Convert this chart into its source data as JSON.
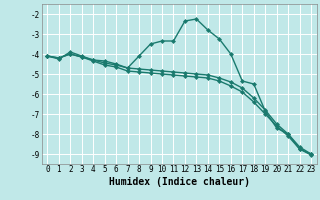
{
  "background_color": "#c0e8e8",
  "grid_color": "#ffffff",
  "line_color": "#1a7a6e",
  "marker": "D",
  "marker_size": 2,
  "line_width": 1.0,
  "xlabel": "Humidex (Indice chaleur)",
  "xlabel_fontsize": 7,
  "xlim": [
    -0.5,
    23.5
  ],
  "ylim": [
    -9.5,
    -1.5
  ],
  "yticks": [
    -9,
    -8,
    -7,
    -6,
    -5,
    -4,
    -3,
    -2
  ],
  "xticks": [
    0,
    1,
    2,
    3,
    4,
    5,
    6,
    7,
    8,
    9,
    10,
    11,
    12,
    13,
    14,
    15,
    16,
    17,
    18,
    19,
    20,
    21,
    22,
    23
  ],
  "tick_fontsize": 5.5,
  "series": [
    {
      "x": [
        0,
        1,
        2,
        3,
        4,
        5,
        6,
        7,
        8,
        9,
        10,
        11,
        12,
        13,
        14,
        15,
        16,
        17,
        18,
        19,
        20,
        21,
        22,
        23
      ],
      "y": [
        -4.1,
        -4.25,
        -3.9,
        -4.1,
        -4.3,
        -4.35,
        -4.5,
        -4.7,
        -4.1,
        -3.5,
        -3.35,
        -3.35,
        -2.35,
        -2.25,
        -2.8,
        -3.25,
        -4.0,
        -5.35,
        -5.5,
        -6.85,
        -7.7,
        -8.0,
        -8.75,
        -9.0
      ]
    },
    {
      "x": [
        0,
        1,
        2,
        3,
        4,
        5,
        6,
        7,
        8,
        9,
        10,
        11,
        12,
        13,
        14,
        15,
        16,
        17,
        18,
        19,
        20,
        21,
        22,
        23
      ],
      "y": [
        -4.1,
        -4.2,
        -4.0,
        -4.15,
        -4.3,
        -4.45,
        -4.55,
        -4.7,
        -4.75,
        -4.8,
        -4.85,
        -4.9,
        -4.95,
        -5.0,
        -5.05,
        -5.2,
        -5.4,
        -5.7,
        -6.2,
        -6.8,
        -7.5,
        -8.0,
        -8.65,
        -9.0
      ]
    },
    {
      "x": [
        0,
        1,
        2,
        3,
        4,
        5,
        6,
        7,
        8,
        9,
        10,
        11,
        12,
        13,
        14,
        15,
        16,
        17,
        18,
        19,
        20,
        21,
        22,
        23
      ],
      "y": [
        -4.1,
        -4.2,
        -4.0,
        -4.15,
        -4.35,
        -4.55,
        -4.65,
        -4.85,
        -4.9,
        -4.95,
        -5.0,
        -5.05,
        -5.1,
        -5.15,
        -5.2,
        -5.35,
        -5.6,
        -5.9,
        -6.4,
        -7.0,
        -7.6,
        -8.1,
        -8.75,
        -9.05
      ]
    }
  ]
}
